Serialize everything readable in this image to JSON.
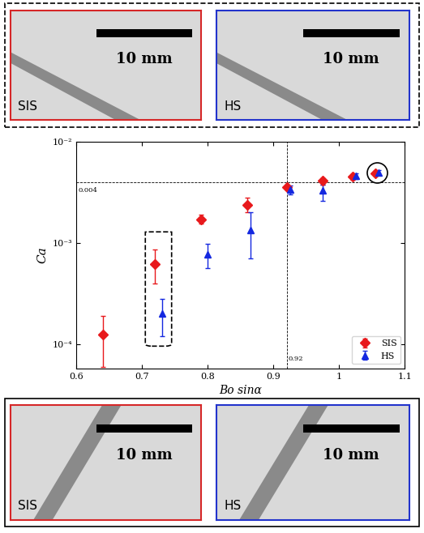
{
  "chart_data": {
    "type": "scatter",
    "x_label": "Bo sinα",
    "y_label": "Ca",
    "log": "y",
    "xlim": [
      0.6,
      1.1
    ],
    "xticks": [
      0.6,
      0.7,
      0.8,
      0.9,
      1,
      1.1
    ],
    "ylim": [
      5.8e-05,
      0.01
    ],
    "yticks": [
      {
        "value": 0.0001,
        "label": "10⁻⁴"
      },
      {
        "value": 0.001,
        "label": "10⁻³"
      },
      {
        "value": 0.01,
        "label": "10⁻²"
      }
    ],
    "legend": "lower right",
    "series": [
      {
        "name": "SIS",
        "color": "#e8191c",
        "marker": "diamond",
        "x": [
          0.64,
          0.72,
          0.79,
          0.86,
          0.92,
          0.975,
          1.02,
          1.055
        ],
        "values": [
          0.000125,
          0.00062,
          0.0017,
          0.0024,
          0.0036,
          0.0041,
          0.0045,
          0.0049
        ],
        "error_low": [
          6e-05,
          0.0004,
          0.00155,
          0.002,
          0.0034,
          0.0038,
          0.0042,
          0.0046
        ],
        "error_high": [
          0.00019,
          0.00086,
          0.0019,
          0.0028,
          0.0038,
          0.0044,
          0.0048,
          0.0052
        ]
      },
      {
        "name": "HS",
        "color": "#1428e0",
        "marker": "triangle",
        "x": [
          0.73,
          0.8,
          0.865,
          0.925,
          0.975,
          1.025,
          1.06
        ],
        "values": [
          0.0002,
          0.00078,
          0.00135,
          0.0034,
          0.0033,
          0.0046,
          0.005
        ],
        "error_low": [
          0.00012,
          0.00057,
          0.0007,
          0.003,
          0.0026,
          0.0043,
          0.0047
        ],
        "error_high": [
          0.00028,
          0.00098,
          0.002,
          0.0037,
          0.0038,
          0.0049,
          0.0053
        ]
      }
    ],
    "reference_lines": [
      {
        "axis": "y",
        "value": 0.004,
        "label": "0.004"
      },
      {
        "axis": "x",
        "value": 0.92,
        "label": "0.92"
      }
    ]
  },
  "image_panels": {
    "top": [
      {
        "label": "SIS",
        "scale_bar": "10 mm",
        "color": "#d62728"
      },
      {
        "label": "HS",
        "scale_bar": "10 mm",
        "color": "#2233cc"
      }
    ],
    "bottom": [
      {
        "label": "SIS",
        "scale_bar": "10 mm",
        "color": "#d62728"
      },
      {
        "label": "HS",
        "scale_bar": "10 mm",
        "color": "#2233cc"
      }
    ]
  }
}
